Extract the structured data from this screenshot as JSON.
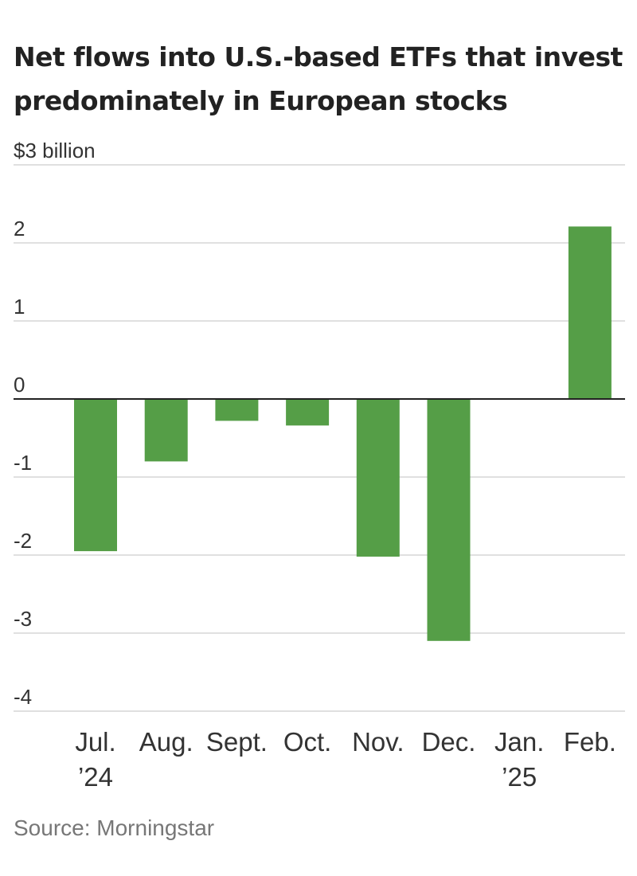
{
  "chart_data": {
    "type": "bar",
    "title": "Net flows into U.S.-based ETFs that invest predominately in European stocks",
    "unit_label": "$3 billion",
    "categories": [
      "Jul. ’24",
      "Aug.",
      "Sept.",
      "Oct.",
      "Nov.",
      "Dec.",
      "Jan. ’25",
      "Feb."
    ],
    "category_lines": [
      [
        "Jul.",
        "’24"
      ],
      [
        "Aug."
      ],
      [
        "Sept."
      ],
      [
        "Oct."
      ],
      [
        "Nov."
      ],
      [
        "Dec."
      ],
      [
        "Jan.",
        "’25"
      ],
      [
        "Feb."
      ]
    ],
    "values": [
      -1.95,
      -0.8,
      -0.28,
      -0.34,
      -2.02,
      -3.1,
      0,
      2.21
    ],
    "ylim": [
      -4,
      3
    ],
    "yticks": [
      3,
      2,
      1,
      0,
      -1,
      -2,
      -3,
      -4
    ],
    "ytick_labels": [
      "$3 billion",
      "2",
      "1",
      "0",
      "-1",
      "-2",
      "-3",
      "-4"
    ],
    "grid": true,
    "bar_color": "#559e47",
    "source": "Source: Morningstar"
  }
}
